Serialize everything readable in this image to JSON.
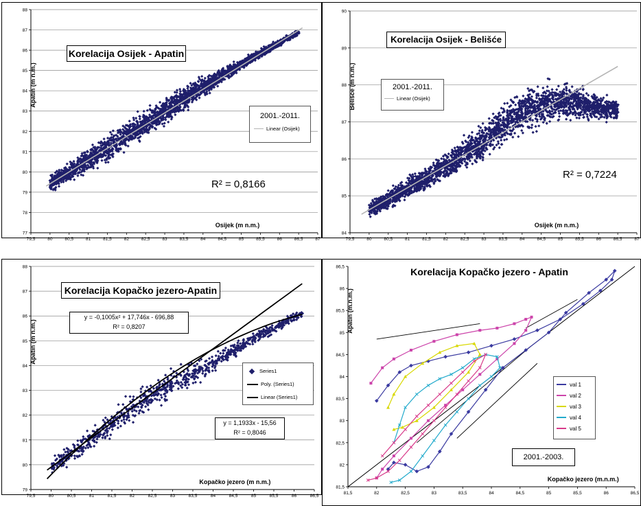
{
  "chart_data": [
    {
      "id": "osijek-apatin",
      "type": "scatter",
      "title": "Korelacija Osijek - Apatin",
      "xlabel": "Osijek (m n.m.)",
      "ylabel": "Apatin (m n.m.)",
      "xlim": [
        79.5,
        87
      ],
      "ylim": [
        77,
        88
      ],
      "x_ticks": [
        "79,5",
        "80",
        "80,5",
        "81",
        "81,5",
        "82",
        "82,5",
        "83",
        "83,5",
        "84",
        "84,5",
        "85",
        "85,5",
        "86",
        "86,5",
        "87"
      ],
      "y_ticks": [
        "77",
        "78",
        "79",
        "80",
        "81",
        "82",
        "83",
        "84",
        "85",
        "86",
        "87",
        "88"
      ],
      "grid": "horizontal",
      "marker_color": "#1f1f6b",
      "trend_color": "#b5b5b5",
      "legend": {
        "period": "2001.-2011.",
        "entry": "Linear (Osijek)"
      },
      "r2_text": "R² = 0,8166",
      "trendline": {
        "x": [
          79.9,
          86.6
        ],
        "y": [
          79.3,
          87.1
        ]
      },
      "cloud": [
        {
          "x": 80.0,
          "y_mid": 79.4,
          "spread": 0.55
        },
        {
          "x": 81.0,
          "y_mid": 80.6,
          "spread": 0.9
        },
        {
          "x": 82.0,
          "y_mid": 81.8,
          "spread": 1.1
        },
        {
          "x": 83.0,
          "y_mid": 83.0,
          "spread": 1.0
        },
        {
          "x": 84.0,
          "y_mid": 84.2,
          "spread": 0.8
        },
        {
          "x": 85.0,
          "y_mid": 85.3,
          "spread": 0.4
        },
        {
          "x": 86.5,
          "y_mid": 86.9,
          "spread": 0.2
        }
      ]
    },
    {
      "id": "osijek-belisce",
      "type": "scatter",
      "title": "Korelacija Osijek - Belišće",
      "xlabel": "Osijek (m n.m.)",
      "ylabel": "Belišće (m n.m.)",
      "xlim": [
        79.5,
        87
      ],
      "ylim": [
        84,
        90
      ],
      "x_ticks": [
        "79,5",
        "80",
        "80,5",
        "81",
        "81,5",
        "82",
        "82,5",
        "83",
        "83,5",
        "84",
        "84,5",
        "85",
        "85,5",
        "86",
        "86,5",
        "87"
      ],
      "y_ticks": [
        "84",
        "85",
        "86",
        "87",
        "88",
        "89",
        "90"
      ],
      "grid": "horizontal",
      "marker_color": "#1f1f6b",
      "trend_color": "#b5b5b5",
      "legend": {
        "period": "2001.-2011.",
        "entry": "Linear (Osijek)"
      },
      "r2_text": "R² = 0,7224",
      "trendline": {
        "x": [
          79.8,
          86.5
        ],
        "y": [
          84.5,
          88.5
        ]
      },
      "cloud": [
        {
          "x": 80.0,
          "y_mid": 84.6,
          "spread": 0.3
        },
        {
          "x": 81.0,
          "y_mid": 85.2,
          "spread": 0.45
        },
        {
          "x": 82.0,
          "y_mid": 85.8,
          "spread": 0.55
        },
        {
          "x": 83.0,
          "y_mid": 86.5,
          "spread": 0.75
        },
        {
          "x": 84.0,
          "y_mid": 87.3,
          "spread": 0.9
        },
        {
          "x": 85.0,
          "y_mid": 87.6,
          "spread": 0.8
        },
        {
          "x": 86.5,
          "y_mid": 87.3,
          "spread": 0.4
        }
      ]
    },
    {
      "id": "kopacko-apatin-fit",
      "type": "scatter",
      "title": "Korelacija Kopačko jezero-Apatin",
      "xlabel": "Kopačko jezero (m n.m.)",
      "ylabel": "Apatin (m n.m.)",
      "xlim": [
        79.5,
        86.5
      ],
      "ylim": [
        79,
        88
      ],
      "x_ticks": [
        "79,5",
        "80",
        "80,5",
        "81",
        "81,5",
        "82",
        "82,5",
        "83",
        "83,5",
        "84",
        "84,5",
        "85",
        "85,5",
        "86",
        "86,5"
      ],
      "y_ticks": [
        "79",
        "80",
        "81",
        "82",
        "83",
        "84",
        "85",
        "86",
        "87",
        "88"
      ],
      "grid": "horizontal",
      "marker_color": "#1f1f6b",
      "legend_entries": [
        "Series1",
        "Poly. (Series1)",
        "Linear (Series1)"
      ],
      "poly_equation": "y = -0,1005x² + 17,746x - 696,88",
      "poly_r2": "R² = 0,8207",
      "linear_equation": "y = 1,1933x - 15,56",
      "linear_r2": "R² = 0,8046",
      "poly_coef": [
        -0.1005,
        17.746,
        -696.88
      ],
      "linear_coef": [
        1.1933,
        -15.56
      ],
      "fit_x_range": [
        79.9,
        86.2
      ],
      "cloud": [
        {
          "x": 80.0,
          "y_mid": 79.9,
          "spread": 0.45
        },
        {
          "x": 81.0,
          "y_mid": 81.0,
          "spread": 0.8
        },
        {
          "x": 82.0,
          "y_mid": 82.3,
          "spread": 0.9
        },
        {
          "x": 83.0,
          "y_mid": 83.3,
          "spread": 0.8
        },
        {
          "x": 84.0,
          "y_mid": 84.1,
          "spread": 0.55
        },
        {
          "x": 85.0,
          "y_mid": 85.1,
          "spread": 0.35
        },
        {
          "x": 86.2,
          "y_mid": 86.1,
          "spread": 0.3
        }
      ]
    },
    {
      "id": "kopacko-apatin-waves",
      "type": "line",
      "title": "Korelacija Kopačko jezero - Apatin",
      "xlabel": "Kopačko jezero (m.n.m.)",
      "ylabel": "Apatin (m.n.m.)",
      "xlim": [
        81.5,
        86.5
      ],
      "ylim": [
        81.5,
        86.5
      ],
      "x_ticks": [
        "81,5",
        "82",
        "82,5",
        "83",
        "83,5",
        "84",
        "84,5",
        "85",
        "85,5",
        "86",
        "86,5"
      ],
      "y_ticks": [
        "81,5",
        "82",
        "82,5",
        "83",
        "83,5",
        "84",
        "84,5",
        "85",
        "85,5",
        "86",
        "86,5"
      ],
      "grid": "none",
      "period": "2001.-2003.",
      "series": [
        {
          "name": "val 1",
          "color": "#3a3aa0",
          "marker": "diamond",
          "x": [
            82.0,
            82.2,
            82.4,
            82.6,
            82.9,
            83.2,
            83.6,
            84.0,
            84.4,
            84.8,
            85.2,
            85.6,
            85.9,
            86.1,
            86.15,
            86.0,
            85.7,
            85.3,
            85.0,
            84.6,
            84.2,
            83.9,
            83.6,
            83.3,
            83.1,
            82.9,
            82.7,
            82.5,
            82.3,
            82.2
          ],
          "y": [
            83.45,
            83.8,
            84.1,
            84.25,
            84.35,
            84.45,
            84.55,
            84.7,
            84.85,
            85.05,
            85.3,
            85.65,
            85.95,
            86.2,
            86.4,
            86.2,
            85.9,
            85.45,
            85.0,
            84.6,
            84.2,
            83.7,
            83.2,
            82.7,
            82.3,
            81.95,
            81.85,
            82.0,
            82.05,
            81.9
          ]
        },
        {
          "name": "val 2",
          "color": "#cc44aa",
          "marker": "square",
          "x": [
            81.9,
            82.1,
            82.3,
            82.6,
            83.0,
            83.4,
            83.8,
            84.1,
            84.4,
            84.6,
            84.7,
            84.6,
            84.4,
            84.1,
            83.8,
            83.5,
            83.2,
            82.9,
            82.6,
            82.3,
            82.1,
            82.0
          ],
          "y": [
            83.85,
            84.2,
            84.4,
            84.6,
            84.8,
            84.95,
            85.05,
            85.1,
            85.2,
            85.3,
            85.35,
            85.05,
            84.75,
            84.4,
            84.05,
            83.7,
            83.35,
            83.0,
            82.6,
            82.2,
            81.9,
            81.7
          ]
        },
        {
          "name": "val 3",
          "color": "#d8d800",
          "marker": "triangle",
          "x": [
            82.2,
            82.3,
            82.5,
            82.8,
            83.1,
            83.4,
            83.7,
            83.8,
            83.6,
            83.3,
            83.0,
            82.7,
            82.45,
            82.3
          ],
          "y": [
            83.3,
            83.6,
            84.0,
            84.3,
            84.55,
            84.7,
            84.75,
            84.5,
            84.1,
            83.7,
            83.3,
            83.0,
            82.85,
            82.8
          ]
        },
        {
          "name": "val 4",
          "color": "#22aacc",
          "marker": "cross",
          "x": [
            82.3,
            82.4,
            82.5,
            82.7,
            82.9,
            83.1,
            83.3,
            83.5,
            83.7,
            83.9,
            84.1,
            84.15,
            84.0,
            83.8,
            83.6,
            83.4,
            83.2,
            83.0,
            82.8,
            82.6,
            82.4,
            82.25
          ],
          "y": [
            82.5,
            82.9,
            83.3,
            83.6,
            83.8,
            83.95,
            84.05,
            84.2,
            84.4,
            84.5,
            84.45,
            84.2,
            84.0,
            83.8,
            83.5,
            83.2,
            82.9,
            82.55,
            82.2,
            81.85,
            81.65,
            81.6
          ]
        },
        {
          "name": "val 5",
          "color": "#d83a8a",
          "marker": "asterisk",
          "x": [
            82.1,
            82.3,
            82.5,
            82.7,
            82.9,
            83.1,
            83.3,
            83.5,
            83.7,
            83.9,
            83.8,
            83.6,
            83.4,
            83.2,
            83.0,
            82.8,
            82.6,
            82.4,
            82.2,
            82.0,
            81.85
          ],
          "y": [
            82.2,
            82.5,
            82.8,
            83.1,
            83.35,
            83.6,
            83.85,
            84.1,
            84.35,
            84.5,
            84.2,
            83.9,
            83.6,
            83.3,
            83.0,
            82.7,
            82.4,
            82.1,
            81.85,
            81.7,
            81.65
          ]
        }
      ],
      "reference_line": {
        "x": [
          81.5,
          86.5
        ],
        "y": [
          81.5,
          86.5
        ]
      },
      "arrow_lines": [
        {
          "x": [
            82.7,
            84.7
          ],
          "y": [
            82.5,
            84.7
          ]
        },
        {
          "x": [
            83.4,
            84.8
          ],
          "y": [
            82.6,
            84.3
          ]
        },
        {
          "x": [
            82.0,
            83.8
          ],
          "y": [
            84.85,
            85.2
          ]
        },
        {
          "x": [
            84.6,
            85.5
          ],
          "y": [
            85.1,
            85.75
          ]
        }
      ]
    }
  ]
}
